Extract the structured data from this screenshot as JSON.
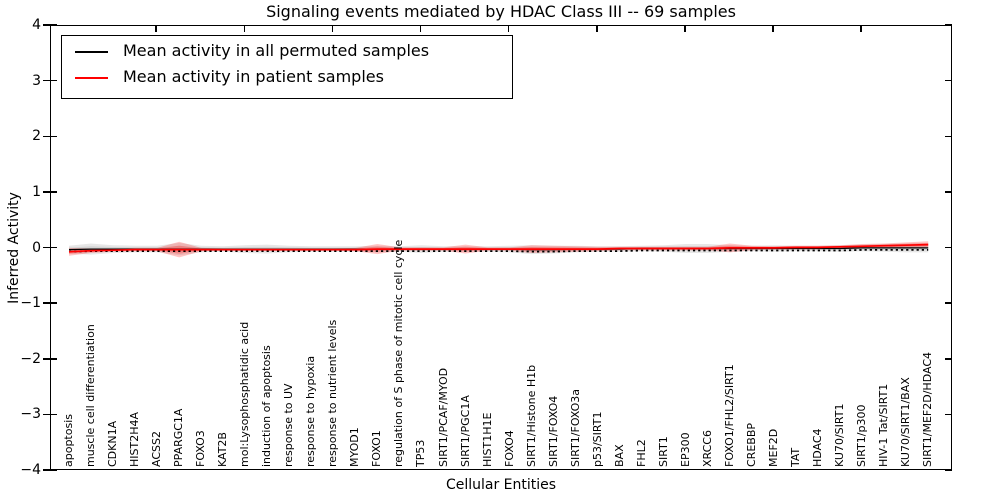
{
  "title": "Signaling events mediated by HDAC Class III -- 69 samples",
  "colors": {
    "permuted_line": "#000000",
    "patient_line": "#ff0000",
    "permuted_band": "#aaaaaa",
    "patient_band": "#ff3030",
    "background": "#ffffff",
    "spine": "#000000"
  },
  "legend": {
    "items": [
      {
        "label": "Mean activity in all permuted samples",
        "color": "#000000"
      },
      {
        "label": "Mean activity in patient samples",
        "color": "#ff0000"
      }
    ]
  },
  "chart_data": {
    "type": "line",
    "title": "Signaling events mediated by HDAC Class III -- 69 samples",
    "xlabel": "Cellular Entities",
    "ylabel": "Inferred Activity",
    "ylim": [
      -4,
      4
    ],
    "yticks": [
      4,
      3,
      2,
      1,
      0,
      -1,
      -2,
      -3,
      -4
    ],
    "ytick_labels": [
      "4",
      "3",
      "2",
      "1",
      "0",
      "−1",
      "−2",
      "−3",
      "−4"
    ],
    "grid": false,
    "legend_position": "upper left",
    "categories": [
      "apoptosis",
      "muscle cell differentiation",
      "CDKN1A",
      "HIST2H4A",
      "ACSS2",
      "PPARGC1A",
      "FOXO3",
      "KAT2B",
      "mol:Lysophosphatidic acid",
      "induction of apoptosis",
      "response to UV",
      "response to hypoxia",
      "response to nutrient levels",
      "MYOD1",
      "FOXO1",
      "regulation of S phase of mitotic cell cycle",
      "TP53",
      "SIRT1/PCAF/MYOD",
      "SIRT1/PGC1A",
      "HIST1H1E",
      "FOXO4",
      "SIRT1/Histone H1b",
      "SIRT1/FOXO4",
      "SIRT1/FOXO3a",
      "p53/SIRT1",
      "BAX",
      "FHL2",
      "SIRT1",
      "EP300",
      "XRCC6",
      "FOXO1/FHL2/SIRT1",
      "CREBBP",
      "MEF2D",
      "TAT",
      "HDAC4",
      "KU70/SIRT1",
      "SIRT1/p300",
      "HIV-1 Tat/SIRT1",
      "KU70/SIRT1/BAX",
      "SIRT1/MEF2D/HDAC4"
    ],
    "series": [
      {
        "name": "Mean activity in all permuted samples",
        "color": "#000000",
        "values": [
          -0.02,
          -0.01,
          -0.01,
          -0.01,
          -0.01,
          -0.01,
          -0.01,
          -0.01,
          -0.01,
          -0.01,
          -0.01,
          -0.01,
          -0.01,
          -0.01,
          -0.01,
          -0.01,
          -0.01,
          -0.01,
          -0.01,
          -0.01,
          -0.01,
          -0.02,
          -0.02,
          -0.01,
          -0.01,
          -0.01,
          0,
          0,
          0,
          0,
          0,
          0,
          0,
          0,
          0,
          0,
          0.01,
          0.01,
          0.01,
          0.01
        ]
      },
      {
        "name": "Mean activity in patient samples",
        "color": "#ff0000",
        "values": [
          -0.06,
          -0.04,
          -0.03,
          -0.02,
          -0.02,
          -0.02,
          -0.02,
          -0.02,
          -0.02,
          -0.02,
          -0.02,
          -0.02,
          -0.02,
          -0.02,
          -0.01,
          -0.01,
          -0.01,
          -0.01,
          -0.01,
          -0.01,
          -0.01,
          -0.01,
          -0.01,
          -0.01,
          -0.01,
          0,
          0,
          0,
          0,
          0,
          0.01,
          0.01,
          0.01,
          0.02,
          0.02,
          0.03,
          0.04,
          0.05,
          0.06,
          0.07
        ]
      }
    ],
    "bands": [
      {
        "name": "permuted-envelope",
        "series": 0,
        "color": "#aaaaaa",
        "half_widths": [
          0.07,
          0.1,
          0.07,
          0.06,
          0.06,
          0.11,
          0.06,
          0.05,
          0.07,
          0.08,
          0.06,
          0.05,
          0.05,
          0.05,
          0.06,
          0.05,
          0.07,
          0.05,
          0.05,
          0.05,
          0.06,
          0.08,
          0.07,
          0.06,
          0.05,
          0.05,
          0.05,
          0.06,
          0.08,
          0.08,
          0.06,
          0.05,
          0.06,
          0.05,
          0.05,
          0.06,
          0.06,
          0.07,
          0.08,
          0.08
        ]
      },
      {
        "name": "patient-envelope",
        "series": 1,
        "color": "#ff3030",
        "half_widths": [
          0.07,
          0.04,
          0.03,
          0.03,
          0.03,
          0.14,
          0.03,
          0.02,
          0.02,
          0.02,
          0.02,
          0.02,
          0.02,
          0.03,
          0.09,
          0.03,
          0.03,
          0.03,
          0.08,
          0.03,
          0.03,
          0.07,
          0.06,
          0.05,
          0.04,
          0.03,
          0.03,
          0.03,
          0.03,
          0.03,
          0.08,
          0.04,
          0.03,
          0.03,
          0.03,
          0.03,
          0.04,
          0.04,
          0.05,
          0.06
        ]
      }
    ]
  }
}
